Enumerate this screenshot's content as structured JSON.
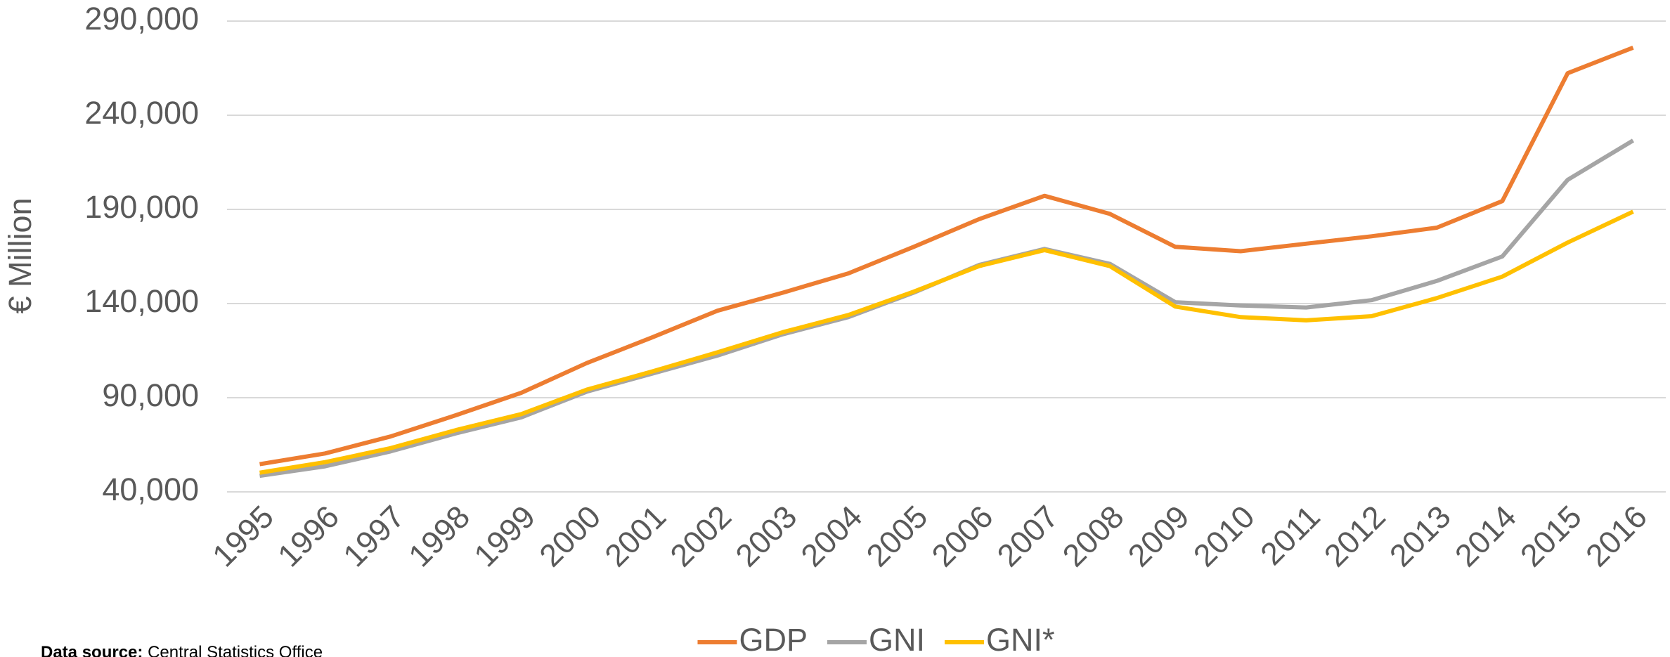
{
  "chart_data": {
    "type": "line",
    "y_label": "€ Million",
    "categories": [
      "1995",
      "1996",
      "1997",
      "1998",
      "1999",
      "2000",
      "2001",
      "2002",
      "2003",
      "2004",
      "2005",
      "2006",
      "2007",
      "2008",
      "2009",
      "2010",
      "2011",
      "2012",
      "2013",
      "2014",
      "2015",
      "2016"
    ],
    "series": [
      {
        "name": "GDP",
        "color": "#ed7d31",
        "values": [
          54700,
          60400,
          69400,
          80700,
          92600,
          108400,
          122000,
          136200,
          145800,
          156000,
          170100,
          184800,
          197200,
          187600,
          170100,
          167800,
          171800,
          175700,
          180300,
          194400,
          262300,
          275900
        ]
      },
      {
        "name": "GNI",
        "color": "#a5a5a5",
        "values": [
          48500,
          53600,
          61500,
          71100,
          79600,
          93200,
          102800,
          112400,
          123700,
          132800,
          145800,
          160500,
          169000,
          161100,
          140700,
          139000,
          137900,
          141800,
          152000,
          165000,
          205700,
          226600
        ]
      },
      {
        "name": "GNI*",
        "color": "#ffc000",
        "values": [
          50200,
          55800,
          63200,
          72800,
          81300,
          94300,
          103900,
          114100,
          124800,
          133900,
          146300,
          159900,
          168400,
          159900,
          138400,
          132800,
          131100,
          133300,
          142900,
          154300,
          172400,
          188800
        ]
      }
    ],
    "ylim": [
      40000,
      290000
    ],
    "yticks": [
      {
        "value": 40000,
        "label": "40,000"
      },
      {
        "value": 90000,
        "label": "90,000"
      },
      {
        "value": 140000,
        "label": "140,000"
      },
      {
        "value": 190000,
        "label": "190,000"
      },
      {
        "value": 240000,
        "label": "240,000"
      },
      {
        "value": 290000,
        "label": "290,000"
      }
    ],
    "grid": true,
    "legend": "bottom",
    "source_label": "Data source:",
    "source_text": "Central Statistics Office"
  }
}
